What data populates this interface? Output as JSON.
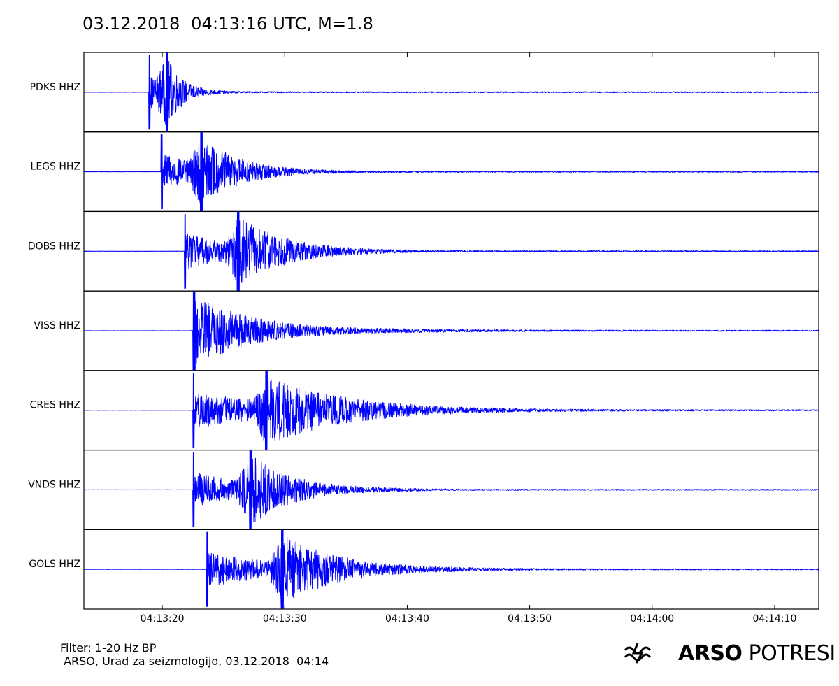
{
  "title": "03.12.2018  04:13:16 UTC, M=1.8",
  "footer": {
    "filter": "Filter: 1-20 Hz BP",
    "credit": " ARSO, Urad za seizmologijo, 03.12.2018  04:14"
  },
  "logo": {
    "icon": "arso-wave-icon",
    "bold": "ARSO",
    "light": " POTRESI"
  },
  "colors": {
    "trace": "#0000ff",
    "frame": "#000000"
  },
  "chart_data": {
    "type": "line",
    "title": "03.12.2018  04:13:16 UTC, M=1.8",
    "xlabel": "",
    "ylabel": "",
    "x_range_seconds_after": [
      "04:13:13.6",
      "04:14:13.6"
    ],
    "x_ticks": [
      "04:13:20",
      "04:13:30",
      "04:13:40",
      "04:13:50",
      "04:14:00",
      "04:14:10"
    ],
    "grid": false,
    "series": [
      {
        "name": "PDKS HHZ",
        "onset_time": "04:13:18.9",
        "peak_time": "04:13:20.4",
        "decay": 1.8
      },
      {
        "name": "LEGS HHZ",
        "onset_time": "04:13:19.9",
        "peak_time": "04:13:23.2",
        "decay": 4.5
      },
      {
        "name": "DOBS HHZ",
        "onset_time": "04:13:21.8",
        "peak_time": "04:13:26.2",
        "decay": 5.5
      },
      {
        "name": "VISS HHZ",
        "onset_time": "04:13:22.5",
        "peak_time": "04:13:22.6",
        "decay": 7.0
      },
      {
        "name": "CRES HHZ",
        "onset_time": "04:13:22.5",
        "peak_time": "04:13:28.5",
        "decay": 9.0
      },
      {
        "name": "VNDS HHZ",
        "onset_time": "04:13:22.5",
        "peak_time": "04:13:27.2",
        "decay": 5.0
      },
      {
        "name": "GOLS HHZ",
        "onset_time": "04:13:23.6",
        "peak_time": "04:13:29.8",
        "decay": 6.5
      }
    ]
  }
}
